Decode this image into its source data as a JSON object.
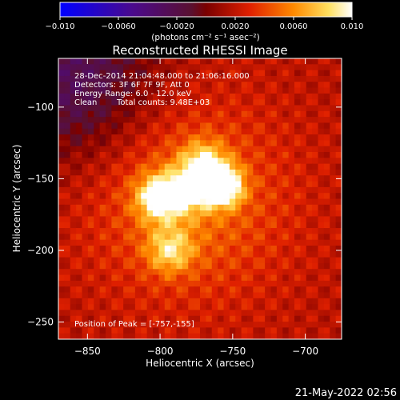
{
  "chart_data": {
    "type": "heatmap",
    "title": "Reconstructed RHESSI Image",
    "xlabel": "Heliocentric X (arcsec)",
    "ylabel": "Heliocentric Y (arcsec)",
    "xlim": [
      -870,
      -675
    ],
    "ylim": [
      -262,
      -66
    ],
    "xticks": [
      -850,
      -800,
      -750,
      -700
    ],
    "yticks": [
      -100,
      -150,
      -200,
      -250
    ],
    "xtick_labels": [
      "−850",
      "−800",
      "−750",
      "−700"
    ],
    "ytick_labels": [
      "−100",
      "−150",
      "−200",
      "−250"
    ],
    "colorbar": {
      "ticks": [
        -0.01,
        -0.006,
        -0.002,
        0.002,
        0.006,
        0.01
      ],
      "tick_labels": [
        "−0.010",
        "−0.0060",
        "−0.0020",
        "0.0020",
        "0.0060",
        "0.010"
      ],
      "unit_label": "(photons cm⁻² s⁻¹ asec⁻²)",
      "range": [
        -0.01,
        0.01
      ],
      "colormap": "blue-purple-red-orange-yellow-white"
    },
    "sources": [
      {
        "x": -757,
        "y": -155,
        "intensity": 0.0105
      },
      {
        "x": -800,
        "y": -163,
        "intensity": 0.0074
      },
      {
        "x": -770,
        "y": -140,
        "intensity": 0.0055
      },
      {
        "x": -793,
        "y": -200,
        "intensity": 0.0048
      },
      {
        "x": -779,
        "y": -158,
        "intensity": 0.0045
      }
    ],
    "background_level": 0.0018
  },
  "annotations": {
    "time_range": "28-Dec-2014 21:04:48.000 to 21:06:16.000",
    "detectors": "Detectors: 3F 6F 7F 9F, Att 0",
    "energy": "Energy Range: 6.0 - 12.0 keV",
    "method": "Clean",
    "counts": "Total counts: 9.48E+03",
    "peak": "Position of Peak = [-757,-155]"
  },
  "footer_date": "21-May-2022 02:56"
}
